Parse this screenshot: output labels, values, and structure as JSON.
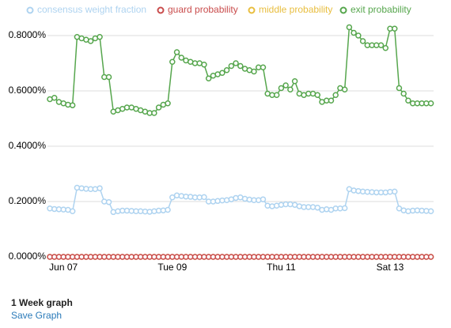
{
  "chart_data": {
    "type": "line",
    "categories": [
      null,
      null,
      null,
      "Jun 07",
      null,
      null,
      null,
      null,
      null,
      null,
      null,
      null,
      null,
      null,
      null,
      null,
      null,
      null,
      null,
      null,
      null,
      null,
      null,
      null,
      null,
      null,
      null,
      "Tue 09",
      null,
      null,
      null,
      null,
      null,
      null,
      null,
      null,
      null,
      null,
      null,
      null,
      null,
      null,
      null,
      null,
      null,
      null,
      null,
      null,
      null,
      null,
      null,
      "Thu 11",
      null,
      null,
      null,
      null,
      null,
      null,
      null,
      null,
      null,
      null,
      null,
      null,
      null,
      null,
      null,
      null,
      null,
      null,
      null,
      null,
      null,
      null,
      null,
      "Sat 13",
      null,
      null,
      null,
      null,
      null,
      null,
      null,
      null,
      null
    ],
    "series": [
      {
        "name": "consensus weight fraction",
        "color": "#aed3f0",
        "values": [
          0.175,
          0.173,
          0.172,
          0.171,
          0.17,
          0.165,
          0.25,
          0.248,
          0.246,
          0.245,
          0.245,
          0.248,
          0.2,
          0.198,
          0.162,
          0.165,
          0.167,
          0.167,
          0.166,
          0.165,
          0.165,
          0.164,
          0.163,
          0.165,
          0.167,
          0.168,
          0.17,
          0.215,
          0.222,
          0.22,
          0.218,
          0.217,
          0.215,
          0.215,
          0.216,
          0.2,
          0.2,
          0.202,
          0.204,
          0.205,
          0.208,
          0.213,
          0.215,
          0.21,
          0.207,
          0.205,
          0.205,
          0.208,
          0.185,
          0.183,
          0.185,
          0.188,
          0.19,
          0.19,
          0.188,
          0.183,
          0.18,
          0.18,
          0.18,
          0.178,
          0.17,
          0.172,
          0.17,
          0.175,
          0.175,
          0.176,
          0.245,
          0.24,
          0.238,
          0.236,
          0.235,
          0.234,
          0.233,
          0.233,
          0.233,
          0.235,
          0.236,
          0.175,
          0.168,
          0.165,
          0.167,
          0.168,
          0.167,
          0.166,
          0.165
        ]
      },
      {
        "name": "guard probability",
        "color": "#c94c4c",
        "values": [
          0,
          0,
          0,
          0,
          0,
          0,
          0,
          0,
          0,
          0,
          0,
          0,
          0,
          0,
          0,
          0,
          0,
          0,
          0,
          0,
          0,
          0,
          0,
          0,
          0,
          0,
          0,
          0,
          0,
          0,
          0,
          0,
          0,
          0,
          0,
          0,
          0,
          0,
          0,
          0,
          0,
          0,
          0,
          0,
          0,
          0,
          0,
          0,
          0,
          0,
          0,
          0,
          0,
          0,
          0,
          0,
          0,
          0,
          0,
          0,
          0,
          0,
          0,
          0,
          0,
          0,
          0,
          0,
          0,
          0,
          0,
          0,
          0,
          0,
          0,
          0,
          0,
          0,
          0,
          0,
          0,
          0,
          0,
          0,
          0
        ]
      },
      {
        "name": "middle probability",
        "color": "#e8be3f",
        "values": [
          0,
          0,
          0,
          0,
          0,
          0,
          0,
          0,
          0,
          0,
          0,
          0,
          0,
          0,
          0,
          0,
          0,
          0,
          0,
          0,
          0,
          0,
          0,
          0,
          0,
          0,
          0,
          0,
          0,
          0,
          0,
          0,
          0,
          0,
          0,
          0,
          0,
          0,
          0,
          0,
          0,
          0,
          0,
          0,
          0,
          0,
          0,
          0,
          0,
          0,
          0,
          0,
          0,
          0,
          0,
          0,
          0,
          0,
          0,
          0,
          0,
          0,
          0,
          0,
          0,
          0,
          0,
          0,
          0,
          0,
          0,
          0,
          0,
          0,
          0,
          0,
          0,
          0,
          0,
          0,
          0,
          0,
          0,
          0,
          0
        ]
      },
      {
        "name": "exit probability",
        "color": "#56a64d",
        "values": [
          0.57,
          0.575,
          0.56,
          0.555,
          0.55,
          0.548,
          0.795,
          0.79,
          0.785,
          0.78,
          0.79,
          0.795,
          0.65,
          0.65,
          0.525,
          0.53,
          0.535,
          0.54,
          0.54,
          0.535,
          0.53,
          0.525,
          0.52,
          0.52,
          0.54,
          0.55,
          0.555,
          0.705,
          0.74,
          0.72,
          0.71,
          0.705,
          0.7,
          0.7,
          0.695,
          0.645,
          0.655,
          0.66,
          0.665,
          0.675,
          0.69,
          0.7,
          0.69,
          0.68,
          0.675,
          0.67,
          0.685,
          0.685,
          0.59,
          0.585,
          0.585,
          0.61,
          0.62,
          0.605,
          0.635,
          0.59,
          0.585,
          0.59,
          0.59,
          0.585,
          0.56,
          0.565,
          0.565,
          0.585,
          0.61,
          0.605,
          0.83,
          0.81,
          0.8,
          0.78,
          0.765,
          0.765,
          0.765,
          0.765,
          0.755,
          0.825,
          0.825,
          0.61,
          0.59,
          0.565,
          0.555,
          0.555,
          0.555,
          0.555,
          0.555
        ]
      }
    ],
    "ylim": [
      0,
      0.85
    ],
    "yticks": [
      {
        "value": 0,
        "label": "0.0000%"
      },
      {
        "value": 0.2,
        "label": "0.2000%"
      },
      {
        "value": 0.4,
        "label": "0.4000%"
      },
      {
        "value": 0.6,
        "label": "0.6000%"
      },
      {
        "value": 0.8,
        "label": "0.8000%"
      }
    ],
    "grid": true
  },
  "graph_label": "1 Week graph",
  "save_link": "Save Graph"
}
